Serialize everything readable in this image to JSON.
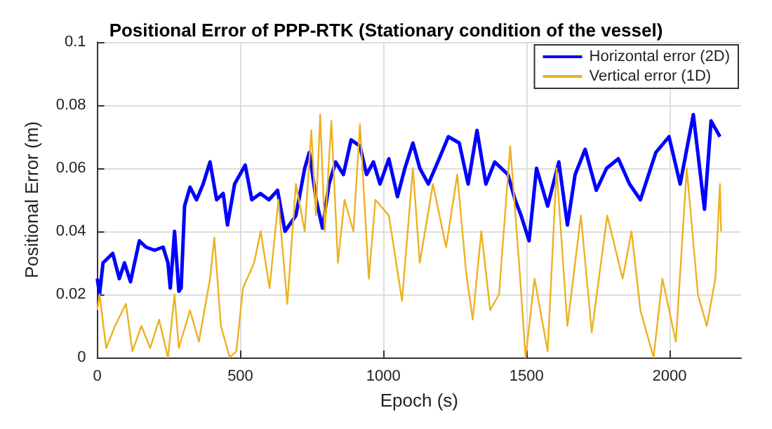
{
  "chart_data": {
    "type": "line",
    "title": "Positional Error of PPP-RTK (Stationary condition of the vessel)",
    "xlabel": "Epoch (s)",
    "ylabel": "Positional Error (m)",
    "xlim": [
      0,
      2250
    ],
    "xticks": [
      0,
      500,
      1000,
      1500,
      2000
    ],
    "ylim": [
      0,
      0.1
    ],
    "yticks": [
      0,
      0.02,
      0.04,
      0.06,
      0.08,
      0.1
    ],
    "grid": true,
    "legend": "top right",
    "marker": "none",
    "line_style": "solid",
    "series": [
      {
        "name": "Horizontal error (2D)",
        "color": "#0000ff",
        "x": [
          0,
          8,
          20,
          54,
          77,
          95,
          116,
          147,
          170,
          200,
          230,
          247,
          255,
          262,
          270,
          285,
          293,
          305,
          324,
          347,
          370,
          394,
          417,
          440,
          455,
          480,
          517,
          540,
          570,
          600,
          630,
          656,
          694,
          725,
          741,
          765,
          787,
          810,
          833,
          860,
          887,
          918,
          941,
          965,
          988,
          1019,
          1049,
          1075,
          1103,
          1127,
          1157,
          1190,
          1227,
          1265,
          1296,
          1327,
          1358,
          1389,
          1435,
          1460,
          1481,
          1509,
          1535,
          1574,
          1613,
          1643,
          1670,
          1705,
          1744,
          1780,
          1821,
          1860,
          1898,
          1952,
          1998,
          2037,
          2083,
          2122,
          2145,
          2176
        ],
        "values": [
          0.025,
          0.02,
          0.03,
          0.033,
          0.025,
          0.03,
          0.024,
          0.037,
          0.035,
          0.034,
          0.035,
          0.03,
          0.022,
          0.03,
          0.04,
          0.021,
          0.022,
          0.048,
          0.054,
          0.05,
          0.055,
          0.062,
          0.05,
          0.052,
          0.042,
          0.055,
          0.061,
          0.05,
          0.052,
          0.05,
          0.053,
          0.04,
          0.045,
          0.06,
          0.065,
          0.05,
          0.041,
          0.055,
          0.062,
          0.058,
          0.069,
          0.067,
          0.058,
          0.062,
          0.055,
          0.063,
          0.051,
          0.06,
          0.068,
          0.06,
          0.055,
          0.062,
          0.07,
          0.068,
          0.055,
          0.072,
          0.055,
          0.062,
          0.058,
          0.05,
          0.045,
          0.037,
          0.06,
          0.048,
          0.062,
          0.042,
          0.058,
          0.066,
          0.053,
          0.06,
          0.063,
          0.055,
          0.05,
          0.065,
          0.07,
          0.055,
          0.077,
          0.047,
          0.075,
          0.07
        ]
      },
      {
        "name": "Vertical error (1D)",
        "color": "#edb120",
        "x": [
          0,
          8,
          31,
          62,
          100,
          123,
          154,
          185,
          216,
          247,
          270,
          285,
          324,
          355,
          394,
          409,
          432,
          463,
          486,
          509,
          548,
          571,
          602,
          633,
          664,
          694,
          725,
          748,
          764,
          779,
          795,
          818,
          841,
          864,
          895,
          918,
          949,
          972,
          1019,
          1065,
          1103,
          1127,
          1173,
          1219,
          1258,
          1289,
          1312,
          1342,
          1373,
          1404,
          1443,
          1474,
          1497,
          1528,
          1574,
          1605,
          1643,
          1690,
          1728,
          1782,
          1836,
          1867,
          1898,
          1944,
          1975,
          2022,
          2060,
          2099,
          2130,
          2160,
          2176,
          2180
        ],
        "values": [
          0.015,
          0.02,
          0.003,
          0.01,
          0.017,
          0.002,
          0.01,
          0.003,
          0.012,
          0,
          0.02,
          0.003,
          0.015,
          0.005,
          0.025,
          0.038,
          0.01,
          0,
          0.002,
          0.022,
          0.03,
          0.04,
          0.022,
          0.05,
          0.017,
          0.055,
          0.04,
          0.072,
          0.045,
          0.077,
          0.04,
          0.075,
          0.03,
          0.05,
          0.04,
          0.074,
          0.025,
          0.05,
          0.045,
          0.018,
          0.06,
          0.03,
          0.055,
          0.035,
          0.058,
          0.027,
          0.012,
          0.04,
          0.015,
          0.02,
          0.067,
          0.03,
          0,
          0.025,
          0.002,
          0.06,
          0.01,
          0.045,
          0.008,
          0.045,
          0.025,
          0.04,
          0.015,
          0,
          0.025,
          0.005,
          0.06,
          0.02,
          0.01,
          0.025,
          0.055,
          0.04
        ]
      }
    ]
  }
}
